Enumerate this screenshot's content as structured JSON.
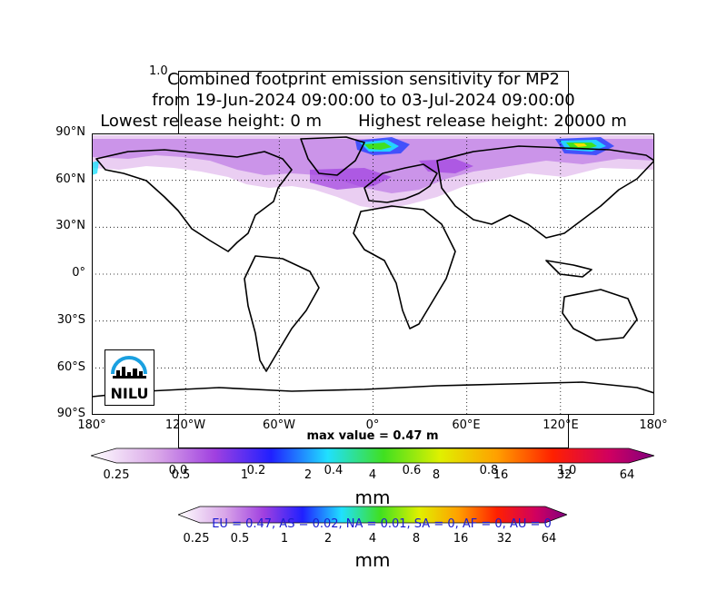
{
  "title": {
    "line1": "Combined footprint emission sensitivity for MP2",
    "line2": "from 19-Jun-2024 09:00:00 to 03-Jul-2024 09:00:00",
    "line3": "Lowest release height: 0 m       Highest release height: 20000 m"
  },
  "ghost_axis": {
    "top_label": "1.0",
    "bottom_labels": [
      "0.0",
      "0.2",
      "0.4",
      "0.6",
      "0.8",
      "1.0"
    ]
  },
  "map": {
    "lat_labels": [
      "90°N",
      "60°N",
      "30°N",
      "0°",
      "30°S",
      "60°S",
      "90°S"
    ],
    "lon_labels": [
      "180°",
      "120°W",
      "60°W",
      "0°",
      "60°E",
      "120°E",
      "180°"
    ],
    "max_value": "max value = 0.47 m",
    "logo_text": "NILU"
  },
  "colorbar_main": {
    "ticks": [
      "0.25",
      "0.5",
      "1",
      "2",
      "4",
      "8",
      "16",
      "32",
      "64"
    ],
    "unit": "mm"
  },
  "colorbar_secondary": {
    "ticks": [
      "0.25",
      "0.5",
      "1",
      "2",
      "4",
      "8",
      "16",
      "32",
      "64"
    ],
    "unit": "mm"
  },
  "regions_text": "EU = 0.47,  AS = 0.02,  NA = 0.01,  SA = 0,  AF = 0,  AU = 0",
  "colors": {
    "plume_light": "#d9a6e8",
    "plume_mid": "#a040e0",
    "plume_blue": "#2040ff",
    "plume_cyan": "#20e0ff",
    "plume_green": "#40e020",
    "plume_yellow": "#f0e000",
    "logo_blue": "#1aa0e0",
    "regions_text": "#1a1ad0"
  }
}
